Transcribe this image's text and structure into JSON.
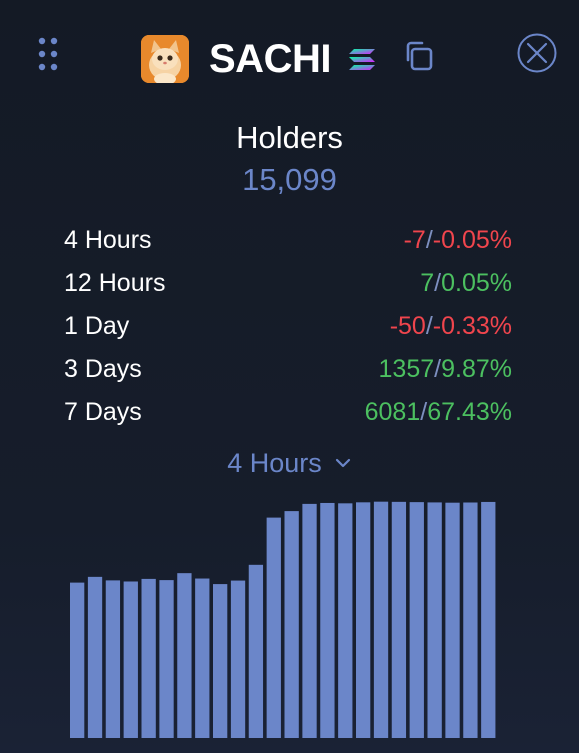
{
  "header": {
    "drag_icon": "drag-handle-icon",
    "avatar_icon": "cat-avatar-icon",
    "token_name": "SACHI",
    "chain_icon": "solana-icon",
    "copy_icon": "copy-icon",
    "close_icon": "close-circle-icon"
  },
  "holders": {
    "title": "Holders",
    "count": "15,099"
  },
  "stats": [
    {
      "period": "4 Hours",
      "change": "-7",
      "percent": "-0.05%",
      "trend": "negative"
    },
    {
      "period": "12 Hours",
      "change": "7",
      "percent": "0.05%",
      "trend": "positive"
    },
    {
      "period": "1 Day",
      "change": "-50",
      "percent": "-0.33%",
      "trend": "negative"
    },
    {
      "period": "3 Days",
      "change": "1357",
      "percent": "9.87%",
      "trend": "positive"
    },
    {
      "period": "7 Days",
      "change": "6081",
      "percent": "67.43%",
      "trend": "positive"
    }
  ],
  "period_selector": {
    "selected": "4 Hours"
  },
  "colors": {
    "background": "#151b27",
    "accent": "#6b86c9",
    "negative": "#f0454d",
    "positive": "#4cc060",
    "bar": "#6b86c9"
  },
  "chart_data": {
    "type": "bar",
    "series": [
      {
        "values": [
          14228,
          14290,
          14252,
          14240,
          14268,
          14255,
          14330,
          14272,
          14212,
          14250,
          14420,
          14930,
          15000,
          15078,
          15088,
          15084,
          15095,
          15102,
          15100,
          15097,
          15094,
          15091,
          15093,
          15099
        ]
      }
    ],
    "ylim": [
      12550,
      15120
    ],
    "grid": false,
    "axes_visible": false
  }
}
